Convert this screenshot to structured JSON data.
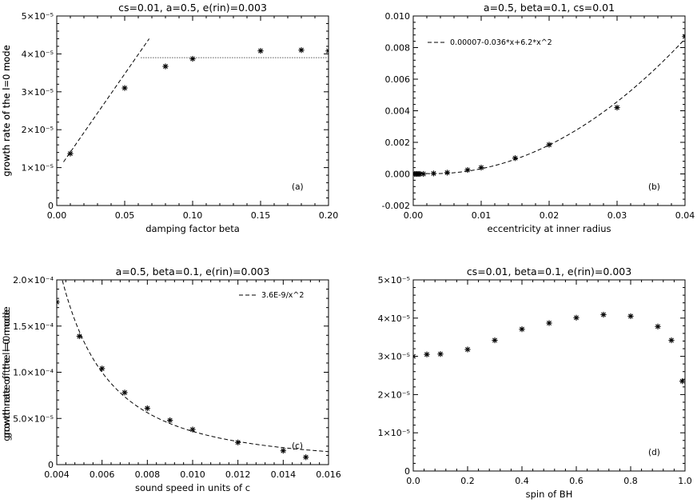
{
  "chart_data": [
    {
      "id": "a",
      "type": "scatter",
      "title": "cs=0.01, a=0.5, e(rin)=0.003",
      "xlabel": "damping factor beta",
      "ylabel": "growth rate of the l=0 mode",
      "panel_label": "(a)",
      "xlim": [
        0,
        0.2
      ],
      "ylim": [
        0,
        5e-05
      ],
      "xticks": [
        0,
        0.05,
        0.1,
        0.15,
        0.2
      ],
      "xtick_labels": [
        "0.00",
        "0.05",
        "0.10",
        "0.15",
        "0.20"
      ],
      "yticks": [
        0,
        1e-05,
        2e-05,
        3e-05,
        4e-05,
        5e-05
      ],
      "ytick_labels": [
        "0",
        "1×10⁻⁵",
        "2×10⁻⁵",
        "3×10⁻⁵",
        "4×10⁻⁵",
        "5×10⁻⁵"
      ],
      "x": [
        0.01,
        0.05,
        0.08,
        0.1,
        0.15,
        0.18,
        0.2
      ],
      "y": [
        1.37e-05,
        3.1e-05,
        3.67e-05,
        3.87e-05,
        4.08e-05,
        4.1e-05,
        4.08e-05
      ],
      "fits": [
        {
          "style": "dashed",
          "kind": "line",
          "x0": 0.005,
          "y0": 1.15e-05,
          "x1": 0.068,
          "y1": 4.4e-05
        },
        {
          "style": "dotted",
          "kind": "hline",
          "y": 3.9e-05,
          "x0": 0.062,
          "x1": 0.2
        }
      ]
    },
    {
      "id": "b",
      "type": "scatter",
      "title": "a=0.5, beta=0.1, cs=0.01",
      "xlabel": "eccentricity at inner radius",
      "ylabel": "growth rate of the l=0 mode",
      "panel_label": "(b)",
      "legend": "0.00007-0.036*x+6.2*x^2",
      "legend_position": "top-left",
      "xlim": [
        0,
        0.04
      ],
      "ylim": [
        -0.002,
        0.01
      ],
      "xticks": [
        0,
        0.01,
        0.02,
        0.03,
        0.04
      ],
      "xtick_labels": [
        "0.00",
        "0.01",
        "0.02",
        "0.03",
        "0.04"
      ],
      "yticks": [
        -0.002,
        0,
        0.002,
        0.004,
        0.006,
        0.008,
        0.01
      ],
      "ytick_labels": [
        "-0.002",
        "0.000",
        "0.002",
        "0.004",
        "0.006",
        "0.008",
        "0.010"
      ],
      "x": [
        0.0002,
        0.0004,
        0.0006,
        0.0008,
        0.001,
        0.0015,
        0.003,
        0.005,
        0.008,
        0.01,
        0.015,
        0.02,
        0.03,
        0.04
      ],
      "y": [
        0.0,
        0.0,
        0.0,
        0.0,
        0.0,
        0.0,
        3e-05,
        8e-05,
        0.00025,
        0.0004,
        0.001,
        0.00185,
        0.0042,
        0.0087
      ],
      "fits": [
        {
          "style": "dashed",
          "kind": "poly",
          "coeffs": [
            7e-05,
            -0.036,
            6.2
          ],
          "x0": 0.0,
          "x1": 0.04
        }
      ]
    },
    {
      "id": "c",
      "type": "scatter",
      "title": "a=0.5, beta=0.1, e(rin)=0.003",
      "xlabel": "sound speed in units of c",
      "ylabel": "growth rate of the l=0 mode",
      "panel_label": "(c)",
      "legend": "3.6E-9/x^2",
      "legend_position": "top-right",
      "xlim": [
        0.004,
        0.016
      ],
      "ylim": [
        0,
        0.0002
      ],
      "xticks": [
        0.004,
        0.006,
        0.008,
        0.01,
        0.012,
        0.014,
        0.016
      ],
      "xtick_labels": [
        "0.004",
        "0.006",
        "0.008",
        "0.010",
        "0.012",
        "0.014",
        "0.016"
      ],
      "yticks": [
        0,
        5e-05,
        0.0001,
        0.00015,
        0.0002
      ],
      "ytick_labels": [
        "0",
        "5.0×10⁻⁵",
        "1.0×10⁻⁴",
        "1.5×10⁻⁴",
        "2.0×10⁻⁴"
      ],
      "x": [
        0.004,
        0.005,
        0.006,
        0.007,
        0.008,
        0.009,
        0.01,
        0.012,
        0.014,
        0.015
      ],
      "y": [
        0.000176,
        0.000139,
        0.000104,
        7.8e-05,
        6.1e-05,
        4.8e-05,
        3.8e-05,
        2.4e-05,
        1.5e-05,
        8e-06
      ],
      "fits": [
        {
          "style": "dashed",
          "kind": "inverse_square",
          "coeff": 3.6e-09,
          "x0": 0.00425,
          "x1": 0.016
        }
      ]
    },
    {
      "id": "d",
      "type": "scatter",
      "title": "cs=0.01, beta=0.1, e(rin)=0.003",
      "xlabel": "spin of BH",
      "ylabel": "growth rate of the l=0 mode",
      "panel_label": "(d)",
      "xlim": [
        0,
        1
      ],
      "ylim": [
        0,
        5e-05
      ],
      "xticks": [
        0,
        0.2,
        0.4,
        0.6,
        0.8,
        1.0
      ],
      "xtick_labels": [
        "0.0",
        "0.2",
        "0.4",
        "0.6",
        "0.8",
        "1.0"
      ],
      "yticks": [
        0,
        1e-05,
        2e-05,
        3e-05,
        4e-05,
        5e-05
      ],
      "ytick_labels": [
        "0",
        "1×10⁻⁵",
        "2×10⁻⁵",
        "3×10⁻⁵",
        "4×10⁻⁵",
        "5×10⁻⁵"
      ],
      "x": [
        0.0,
        0.05,
        0.1,
        0.2,
        0.3,
        0.4,
        0.5,
        0.6,
        0.7,
        0.8,
        0.9,
        0.95,
        0.99
      ],
      "y": [
        3e-05,
        3.05e-05,
        3.06e-05,
        3.18e-05,
        3.42e-05,
        3.71e-05,
        3.87e-05,
        4.01e-05,
        4.09e-05,
        4.05e-05,
        3.78e-05,
        3.42e-05,
        2.35e-05
      ],
      "fits": []
    }
  ]
}
